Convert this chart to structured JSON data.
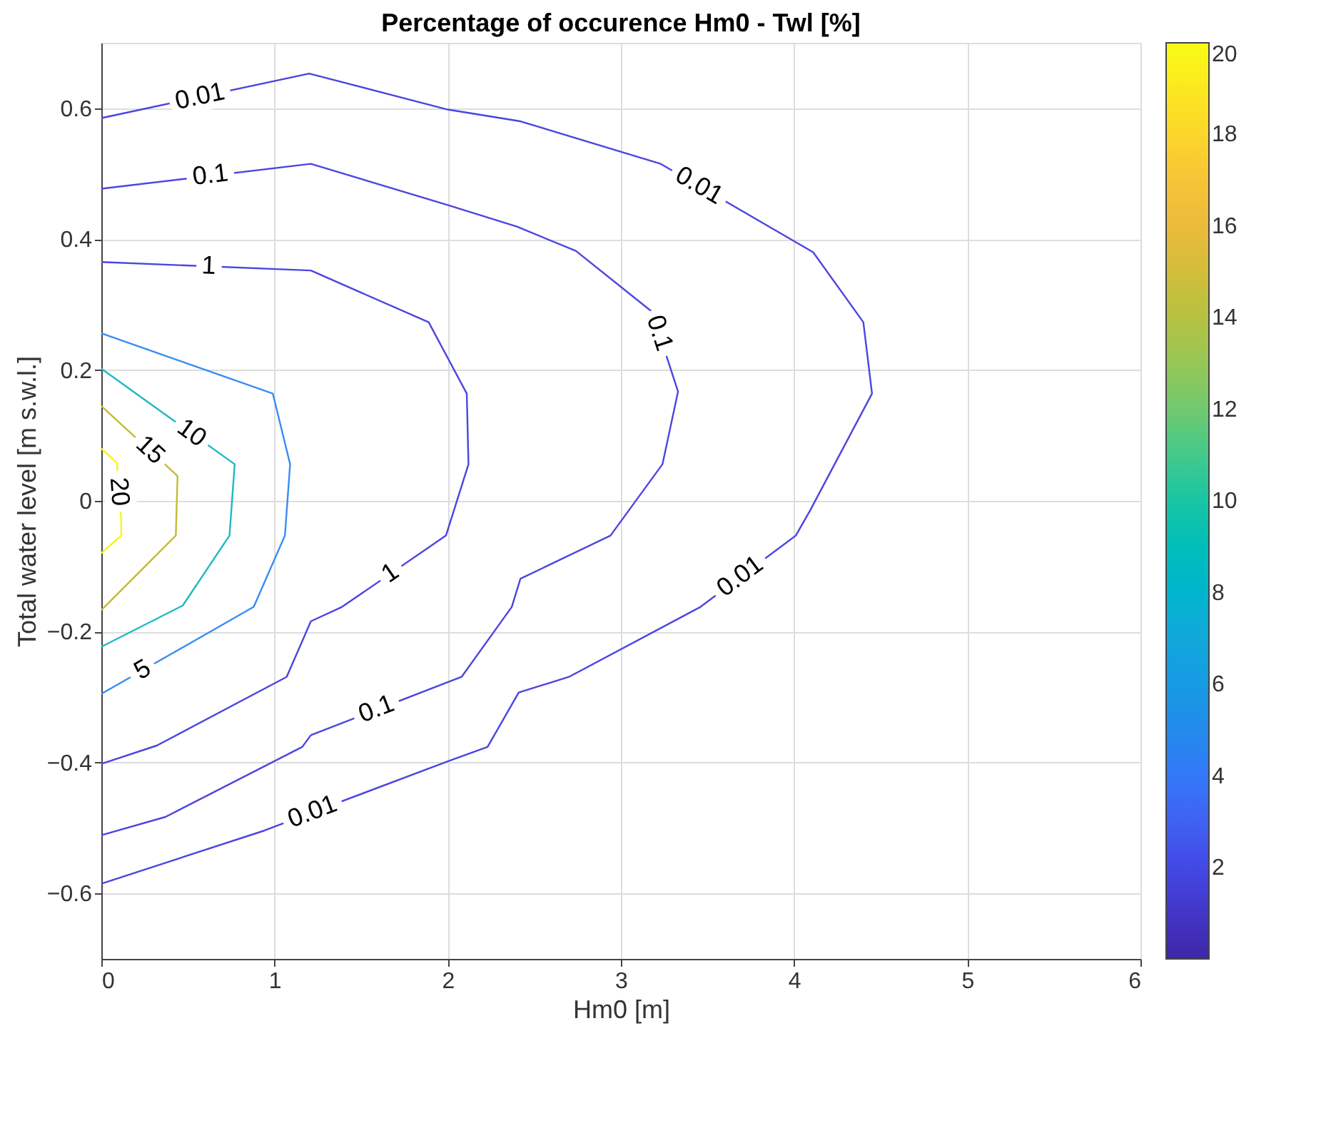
{
  "chart_data": {
    "type": "line",
    "title": "Percentage of occurence Hm0 - Twl [%]",
    "xlabel": "Hm0 [m]",
    "ylabel": "Total water level [m s.w.l.]",
    "xlim": [
      0,
      6
    ],
    "xticks": [
      0,
      1,
      2,
      3,
      4,
      5,
      6
    ],
    "ylim": [
      -0.7,
      0.7
    ],
    "yticks": [
      -0.6,
      -0.4,
      -0.2,
      0,
      0.2,
      0.4,
      0.6
    ],
    "grid": true,
    "marker": "none",
    "line_style": "solid",
    "clim": [
      0.01,
      20
    ],
    "cticks": [
      2,
      4,
      6,
      8,
      10,
      12,
      14,
      16,
      18,
      20
    ],
    "series": [
      {
        "color": "#4b45df",
        "x": [
          0,
          1.2,
          2.0,
          2.42,
          3.23,
          4.11,
          4.4,
          4.45,
          4.09,
          4.01,
          3.46,
          2.7,
          2.41,
          2.23,
          2.0,
          0.94,
          0
        ],
        "values": [
          0.585,
          0.653,
          0.598,
          0.58,
          0.515,
          0.38,
          0.273,
          0.164,
          -0.016,
          -0.053,
          -0.162,
          -0.269,
          -0.293,
          -0.376,
          -0.398,
          -0.504,
          -0.585
        ]
      },
      {
        "color": "#4b45df",
        "x": [
          0,
          1.21,
          2.0,
          2.4,
          2.74,
          3.18,
          3.33,
          3.24,
          2.94,
          2.42,
          2.37,
          2.08,
          1.21,
          1.16,
          0.37,
          0
        ],
        "values": [
          0.477,
          0.515,
          0.452,
          0.419,
          0.382,
          0.289,
          0.167,
          0.056,
          -0.053,
          -0.119,
          -0.162,
          -0.269,
          -0.358,
          -0.376,
          -0.483,
          -0.511
        ]
      },
      {
        "color": "#4b45df",
        "x": [
          0,
          1.21,
          1.89,
          2.11,
          2.12,
          1.99,
          1.39,
          1.21,
          1.07,
          0.32,
          0
        ],
        "values": [
          0.365,
          0.352,
          0.273,
          0.164,
          0.056,
          -0.053,
          -0.162,
          -0.184,
          -0.269,
          -0.374,
          -0.402
        ]
      },
      {
        "color": "#3a8cf2",
        "x": [
          0,
          0.99,
          1.09,
          1.06,
          0.88,
          0
        ],
        "values": [
          0.256,
          0.164,
          0.056,
          -0.053,
          -0.162,
          -0.295
        ]
      },
      {
        "color": "#20b8c4",
        "x": [
          0,
          0.77,
          0.74,
          0.47,
          0
        ],
        "values": [
          0.202,
          0.056,
          -0.053,
          -0.16,
          -0.223
        ]
      },
      {
        "color": "#c3bc34",
        "x": [
          0,
          0.44,
          0.43,
          0
        ],
        "values": [
          0.145,
          0.038,
          -0.053,
          -0.167
        ]
      },
      {
        "color": "#f6f614",
        "x": [
          0,
          0.09,
          0.115,
          0.115,
          0
        ],
        "values": [
          0.08,
          0.058,
          -0.03,
          -0.053,
          -0.08
        ]
      }
    ],
    "annotations": [
      {
        "text": "0.01",
        "x": 0.57,
        "y": 0.617
      },
      {
        "text": "0.1",
        "x": 0.63,
        "y": 0.497
      },
      {
        "text": "1",
        "x": 0.62,
        "y": 0.358
      },
      {
        "text": "0.01",
        "x": 3.45,
        "y": 0.481
      },
      {
        "text": "0.1",
        "x": 3.22,
        "y": 0.256
      },
      {
        "text": "10",
        "x": 0.52,
        "y": 0.103
      },
      {
        "text": "15",
        "x": 0.28,
        "y": 0.077
      },
      {
        "text": "20",
        "x": 0.1,
        "y": 0.014
      },
      {
        "text": "1",
        "x": 1.67,
        "y": -0.111
      },
      {
        "text": "0.01",
        "x": 3.69,
        "y": -0.116
      },
      {
        "text": "5",
        "x": 0.24,
        "y": -0.259
      },
      {
        "text": "0.1",
        "x": 1.59,
        "y": -0.319
      },
      {
        "text": "0.01",
        "x": 1.22,
        "y": -0.476
      }
    ]
  }
}
